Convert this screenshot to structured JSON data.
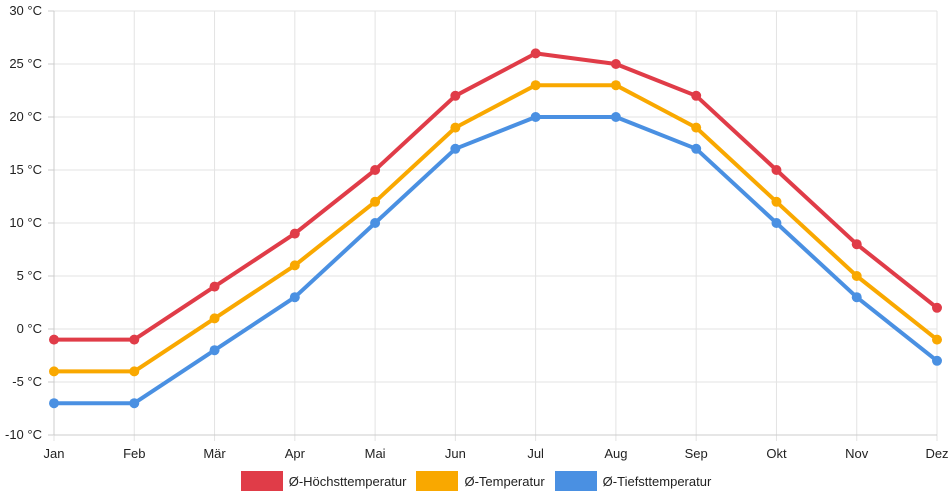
{
  "chart_data": {
    "type": "line",
    "categories": [
      "Jan",
      "Feb",
      "Mär",
      "Apr",
      "Mai",
      "Jun",
      "Jul",
      "Aug",
      "Sep",
      "Okt",
      "Nov",
      "Dez"
    ],
    "y_ticks": [
      "30 °C",
      "25 °C",
      "20 °C",
      "15 °C",
      "10 °C",
      "5 °C",
      "0 °C",
      "-5 °C",
      "-10 °C"
    ],
    "ylim": [
      -10,
      30
    ],
    "grid": true,
    "legend_position": "bottom-center",
    "series": [
      {
        "name": "Ø-Höchsttemperatur",
        "color": "#e03c48",
        "values": [
          -1,
          -1,
          4,
          9,
          15,
          22,
          26,
          25,
          22,
          15,
          8,
          2
        ]
      },
      {
        "name": "Ø-Temperatur",
        "color": "#f9a800",
        "values": [
          -4,
          -4,
          1,
          6,
          12,
          19,
          23,
          23,
          19,
          12,
          5,
          -1
        ]
      },
      {
        "name": "Ø-Tiefsttemperatur",
        "color": "#4a90e2",
        "values": [
          -7,
          -7,
          -2,
          3,
          10,
          17,
          20,
          20,
          17,
          10,
          3,
          -3
        ]
      }
    ]
  }
}
